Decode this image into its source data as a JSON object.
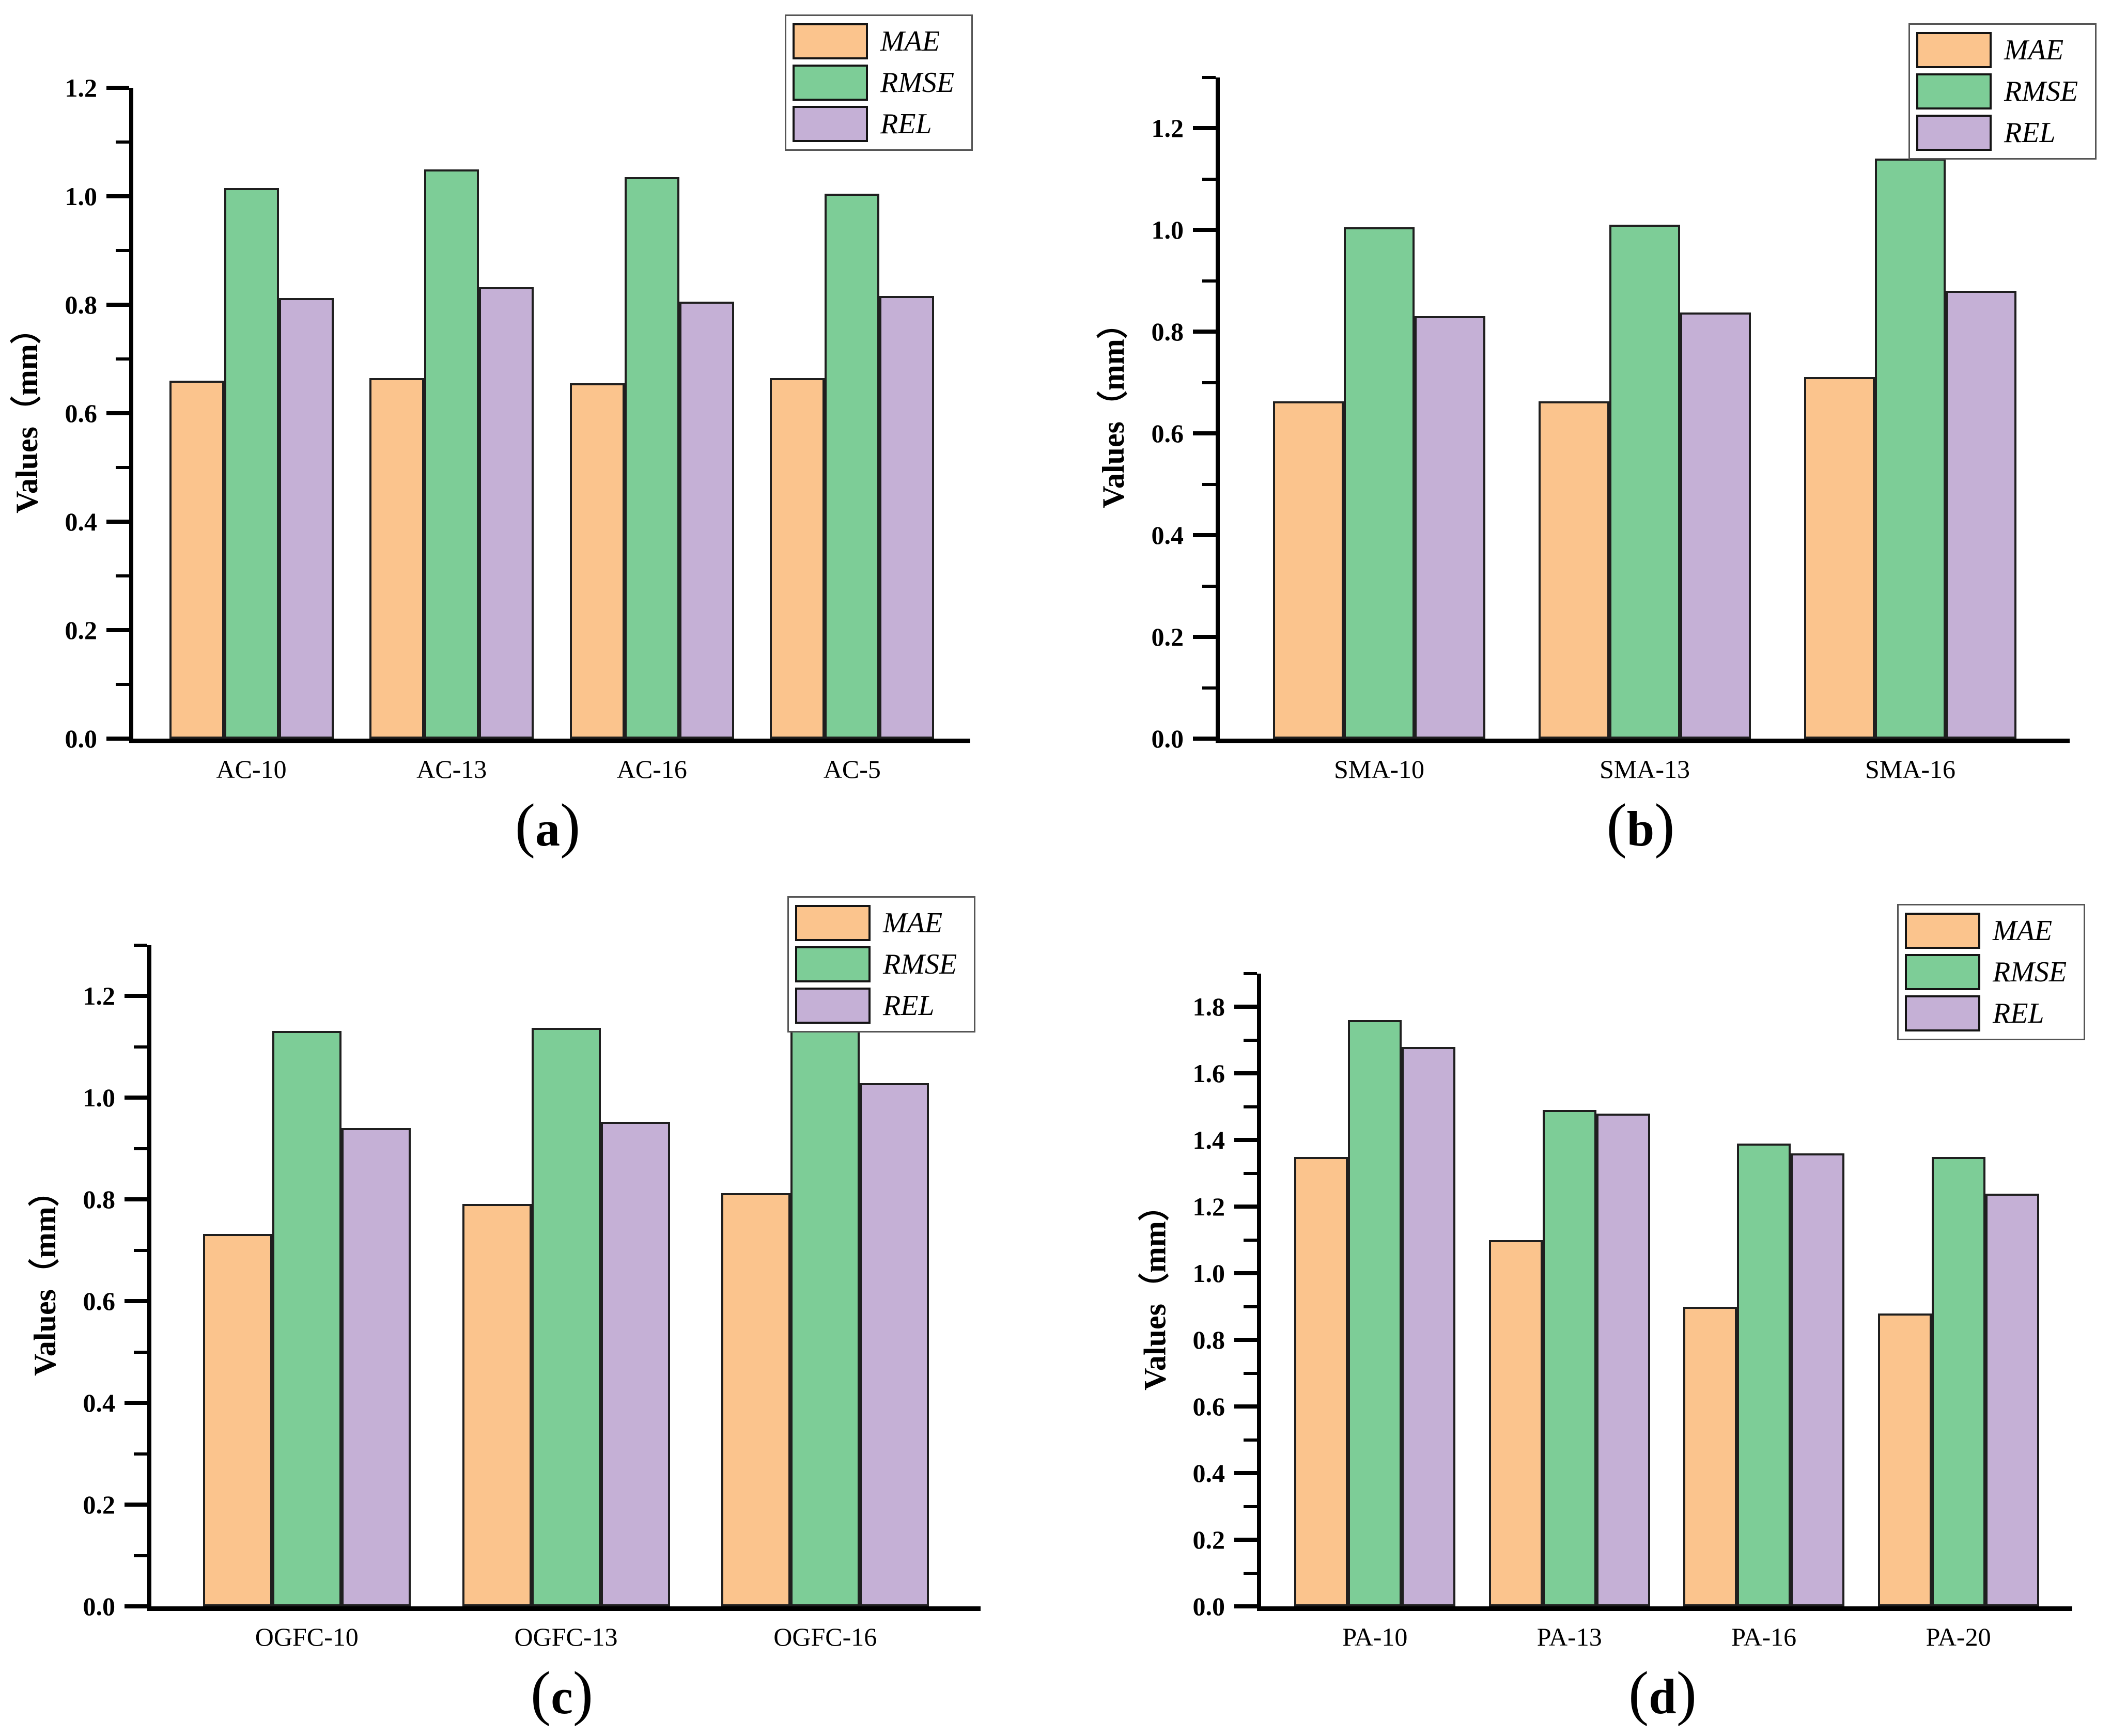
{
  "figure": {
    "series_labels": [
      "MAE",
      "RMSE",
      "REL"
    ],
    "colors": {
      "MAE": "#FBC48D",
      "RMSE": "#7DCD97",
      "REL": "#C5B0D6",
      "bar_edge": "#1f1f1f",
      "axis": "#000000"
    },
    "ylabel": "Values（mm）"
  },
  "chart_data": [
    {
      "type": "bar",
      "panel": "a",
      "caption": {
        "open": "(",
        "letter": "a",
        "close": ")"
      },
      "title": "",
      "xlabel": "",
      "ylabel": "Values（mm）",
      "categories": [
        "AC-10",
        "AC-13",
        "AC-16",
        "AC-5"
      ],
      "series": [
        {
          "name": "MAE",
          "values": [
            0.66,
            0.665,
            0.655,
            0.665
          ]
        },
        {
          "name": "RMSE",
          "values": [
            1.015,
            1.05,
            1.035,
            1.005
          ]
        },
        {
          "name": "REL",
          "values": [
            0.812,
            0.832,
            0.806,
            0.816
          ]
        }
      ],
      "ylim": [
        0,
        1.2
      ],
      "ytick_step": 0.2,
      "ytick_max": 1.2,
      "minor_tick_step": 0.1,
      "grid": false,
      "legend": [
        "MAE",
        "RMSE",
        "REL"
      ],
      "legend_position": "top-right"
    },
    {
      "type": "bar",
      "panel": "b",
      "caption": {
        "open": "(",
        "letter": "b",
        "close": ")"
      },
      "title": "",
      "xlabel": "",
      "ylabel": "Values（mm）",
      "categories": [
        "SMA-10",
        "SMA-13",
        "SMA-16"
      ],
      "series": [
        {
          "name": "MAE",
          "values": [
            0.663,
            0.663,
            0.711
          ]
        },
        {
          "name": "RMSE",
          "values": [
            1.005,
            1.011,
            1.141
          ]
        },
        {
          "name": "REL",
          "values": [
            0.831,
            0.838,
            0.881
          ]
        }
      ],
      "ylim": [
        0,
        1.3
      ],
      "ytick_step": 0.2,
      "ytick_max": 1.2,
      "minor_tick_step": 0.1,
      "grid": false,
      "legend": [
        "MAE",
        "RMSE",
        "REL"
      ],
      "legend_position": "top-right"
    },
    {
      "type": "bar",
      "panel": "c",
      "caption": {
        "open": "(",
        "letter": "c",
        "close": ")"
      },
      "title": "",
      "xlabel": "",
      "ylabel": "Values（mm）",
      "categories": [
        "OGFC-10",
        "OGFC-13",
        "OGFC-16"
      ],
      "series": [
        {
          "name": "MAE",
          "values": [
            0.732,
            0.791,
            0.813
          ]
        },
        {
          "name": "RMSE",
          "values": [
            1.131,
            1.138,
            1.173
          ]
        },
        {
          "name": "REL",
          "values": [
            0.94,
            0.953,
            1.029
          ]
        }
      ],
      "ylim": [
        0,
        1.3
      ],
      "ytick_step": 0.2,
      "ytick_max": 1.2,
      "minor_tick_step": 0.1,
      "grid": false,
      "legend": [
        "MAE",
        "RMSE",
        "REL"
      ],
      "legend_position": "top-right"
    },
    {
      "type": "bar",
      "panel": "d",
      "caption": {
        "open": "(",
        "letter": "d",
        "close": ")"
      },
      "title": "",
      "xlabel": "",
      "ylabel": "Values（mm）",
      "categories": [
        "PA-10",
        "PA-13",
        "PA-16",
        "PA-20"
      ],
      "series": [
        {
          "name": "MAE",
          "values": [
            1.35,
            1.1,
            0.9,
            0.88
          ]
        },
        {
          "name": "RMSE",
          "values": [
            1.76,
            1.49,
            1.39,
            1.35
          ]
        },
        {
          "name": "REL",
          "values": [
            1.68,
            1.48,
            1.36,
            1.24
          ]
        }
      ],
      "ylim": [
        0,
        1.9
      ],
      "ytick_step": 0.2,
      "ytick_max": 1.8,
      "minor_tick_step": 0.1,
      "grid": false,
      "legend": [
        "MAE",
        "RMSE",
        "REL"
      ],
      "legend_position": "top-right"
    }
  ]
}
